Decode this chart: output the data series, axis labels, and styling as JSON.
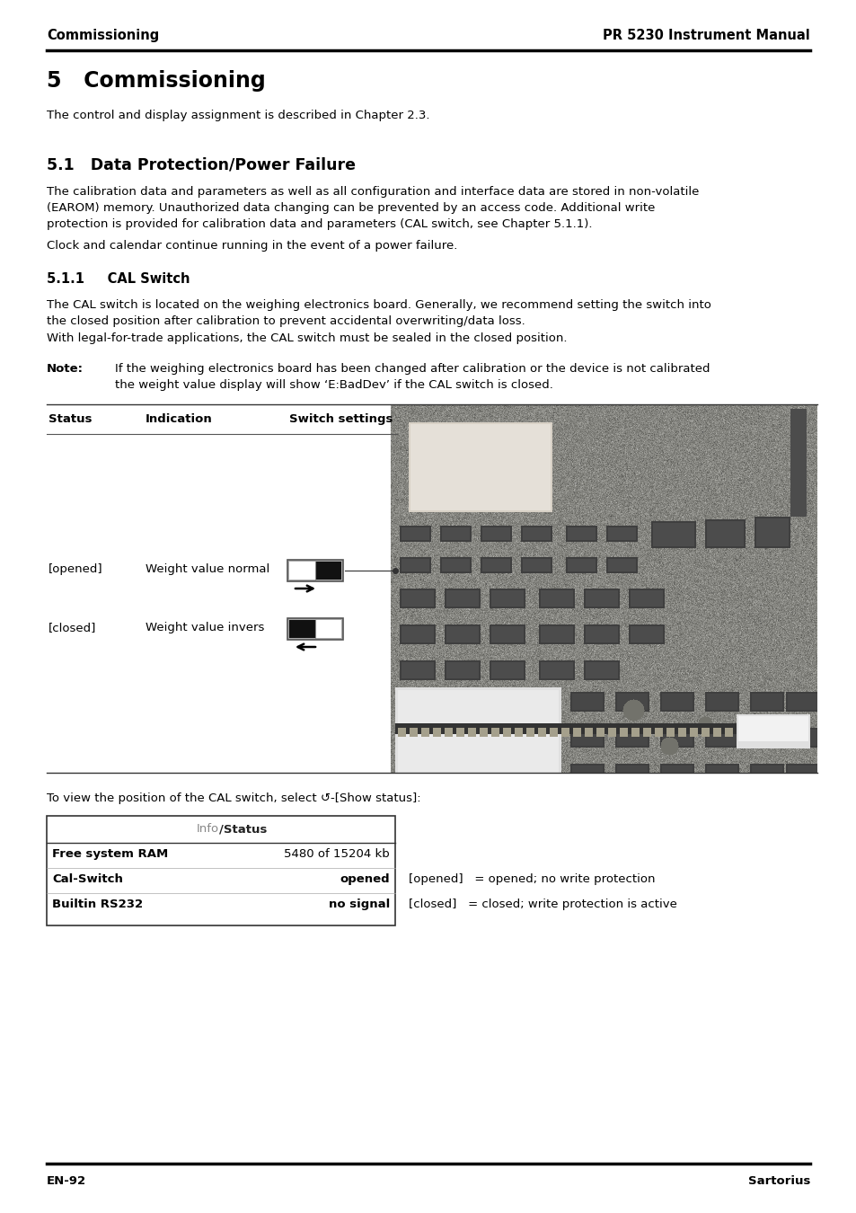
{
  "header_left": "Commissioning",
  "header_right": "PR 5230 Instrument Manual",
  "footer_left": "EN-92",
  "footer_right": "Sartorius",
  "chapter_title": "5   Commissioning",
  "chapter_intro": "The control and display assignment is described in Chapter 2.3.",
  "section_title": "5.1   Data Protection/Power Failure",
  "section_body1": "The calibration data and parameters as well as all configuration and interface data are stored in non-volatile\n(EAROM) memory. Unauthorized data changing can be prevented by an access code. Additional write\nprotection is provided for calibration data and parameters (CAL switch, see Chapter 5.1.1).",
  "section_body2": "Clock and calendar continue running in the event of a power failure.",
  "subsection_title": "5.1.1     CAL Switch",
  "subsection_body1": "The CAL switch is located on the weighing electronics board. Generally, we recommend setting the switch into\nthe closed position after calibration to prevent accidental overwriting/data loss.",
  "subsection_body2": "With legal-for-trade applications, the CAL switch must be sealed in the closed position.",
  "note_label": "Note:",
  "note_text": "If the weighing electronics board has been changed after calibration or the device is not calibrated\nthe weight value display will show ‘E:BadDev’ if the CAL switch is closed.",
  "table_header_status": "Status",
  "table_header_indication": "Indication",
  "table_header_switch": "Switch settings",
  "table_row1_status": "[opened]",
  "table_row1_indication": "Weight value normal",
  "table_row2_status": "[closed]",
  "table_row2_indication": "Weight value invers",
  "caption_below_table": "To view the position of the CAL switch, select ↺-[Show status]:",
  "info_table_header": "Info/Status",
  "info_row1_label": "Free system RAM",
  "info_row1_value": "5480 of 15204 kb",
  "info_row2_label": "Cal-Switch",
  "info_row2_value": "opened",
  "info_row3_label": "Builtin RS232",
  "info_row3_value": "no signal",
  "legend_opened": "[opened]   = opened; no write protection",
  "legend_closed": "[closed]   = closed; write protection is active",
  "bg_color": "#ffffff",
  "text_color": "#000000",
  "line_color": "#000000"
}
